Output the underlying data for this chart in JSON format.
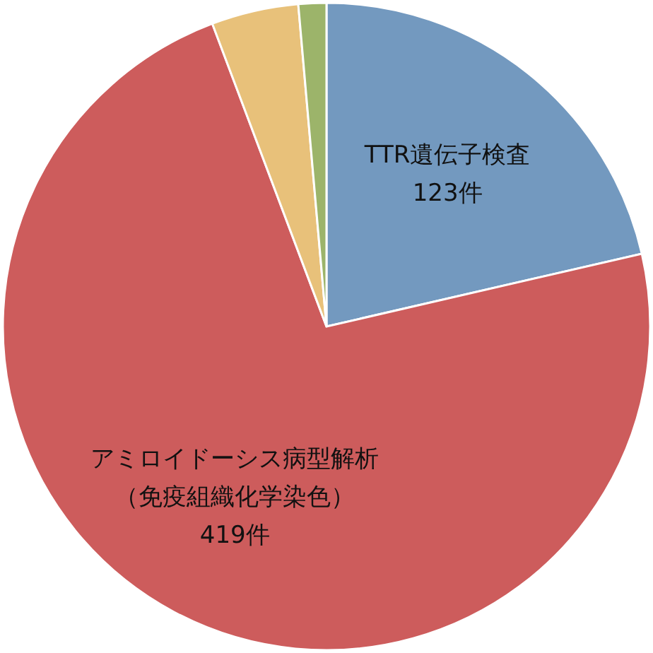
{
  "chart_data": {
    "type": "pie",
    "categories": [
      "TTR遺伝子検査",
      "アミロイドーシス病型解析（免疫組織化学染色）",
      null,
      null
    ],
    "values": [
      123,
      419,
      25,
      8
    ],
    "value_labels": [
      "123件",
      "419件",
      null,
      null
    ],
    "colors": [
      "#7399bf",
      "#cd5c5c",
      "#e8c17a",
      "#9cb46a"
    ]
  }
}
